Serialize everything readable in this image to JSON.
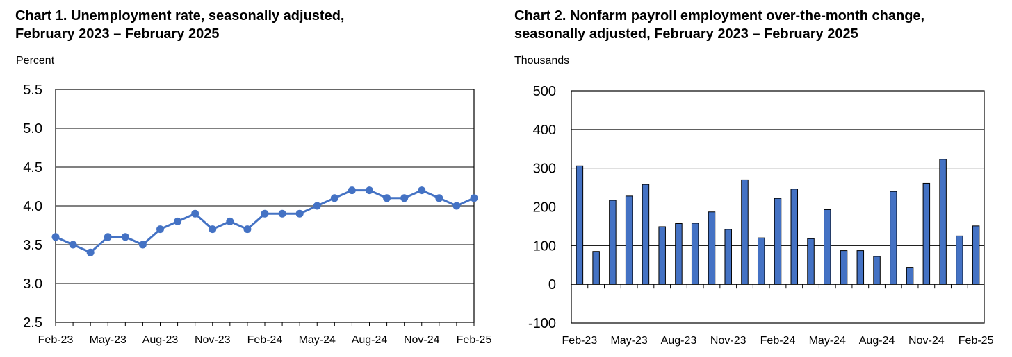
{
  "chart_data": [
    {
      "type": "line",
      "title": "Chart 1. Unemployment rate, seasonally adjusted, February 2023 – February 2025",
      "title_lines": [
        "Chart 1. Unemployment rate, seasonally adjusted,",
        "February 2023 – February 2025"
      ],
      "ylabel": "Percent",
      "xlabel": "",
      "ylim": [
        2.5,
        5.5
      ],
      "yticks": [
        "2.5",
        "3.0",
        "3.5",
        "4.0",
        "4.5",
        "5.0",
        "5.5"
      ],
      "ytick_values": [
        2.5,
        3.0,
        3.5,
        4.0,
        4.5,
        5.0,
        5.5
      ],
      "xtick_labels": [
        "Feb-23",
        "May-23",
        "Aug-23",
        "Nov-23",
        "Feb-24",
        "May-24",
        "Aug-24",
        "Nov-24",
        "Feb-25"
      ],
      "x": [
        "Feb-23",
        "Mar-23",
        "Apr-23",
        "May-23",
        "Jun-23",
        "Jul-23",
        "Aug-23",
        "Sep-23",
        "Oct-23",
        "Nov-23",
        "Dec-23",
        "Jan-24",
        "Feb-24",
        "Mar-24",
        "Apr-24",
        "May-24",
        "Jun-24",
        "Jul-24",
        "Aug-24",
        "Sep-24",
        "Oct-24",
        "Nov-24",
        "Dec-24",
        "Jan-25",
        "Feb-25"
      ],
      "values": [
        3.6,
        3.5,
        3.4,
        3.6,
        3.6,
        3.5,
        3.7,
        3.8,
        3.9,
        3.7,
        3.8,
        3.7,
        3.9,
        3.9,
        3.9,
        4.0,
        4.1,
        4.2,
        4.2,
        4.1,
        4.1,
        4.2,
        4.1,
        4.0,
        4.1
      ],
      "grid": true,
      "color": "#4472C4"
    },
    {
      "type": "bar",
      "title": "Chart 2. Nonfarm payroll employment over-the-month change, seasonally adjusted, February 2023 – February 2025",
      "title_lines": [
        "Chart 2. Nonfarm payroll employment over-the-month change,",
        "seasonally adjusted, February 2023 – February 2025"
      ],
      "ylabel": "Thousands",
      "xlabel": "",
      "ylim": [
        -100,
        500
      ],
      "yticks": [
        "-100",
        "0",
        "100",
        "200",
        "300",
        "400",
        "500"
      ],
      "ytick_values": [
        -100,
        0,
        100,
        200,
        300,
        400,
        500
      ],
      "xtick_labels": [
        "Feb-23",
        "May-23",
        "Aug-23",
        "Nov-23",
        "Feb-24",
        "May-24",
        "Aug-24",
        "Nov-24",
        "Feb-25"
      ],
      "categories": [
        "Feb-23",
        "Mar-23",
        "Apr-23",
        "May-23",
        "Jun-23",
        "Jul-23",
        "Aug-23",
        "Sep-23",
        "Oct-23",
        "Nov-23",
        "Dec-23",
        "Jan-24",
        "Feb-24",
        "Mar-24",
        "Apr-24",
        "May-24",
        "Jun-24",
        "Jul-24",
        "Aug-24",
        "Sep-24",
        "Oct-24",
        "Nov-24",
        "Dec-24",
        "Jan-25",
        "Feb-25"
      ],
      "values": [
        306,
        85,
        217,
        228,
        258,
        149,
        157,
        158,
        187,
        142,
        270,
        120,
        222,
        246,
        118,
        193,
        87,
        87,
        72,
        240,
        44,
        261,
        323,
        125,
        151
      ],
      "grid": true,
      "color": "#4472C4"
    }
  ]
}
